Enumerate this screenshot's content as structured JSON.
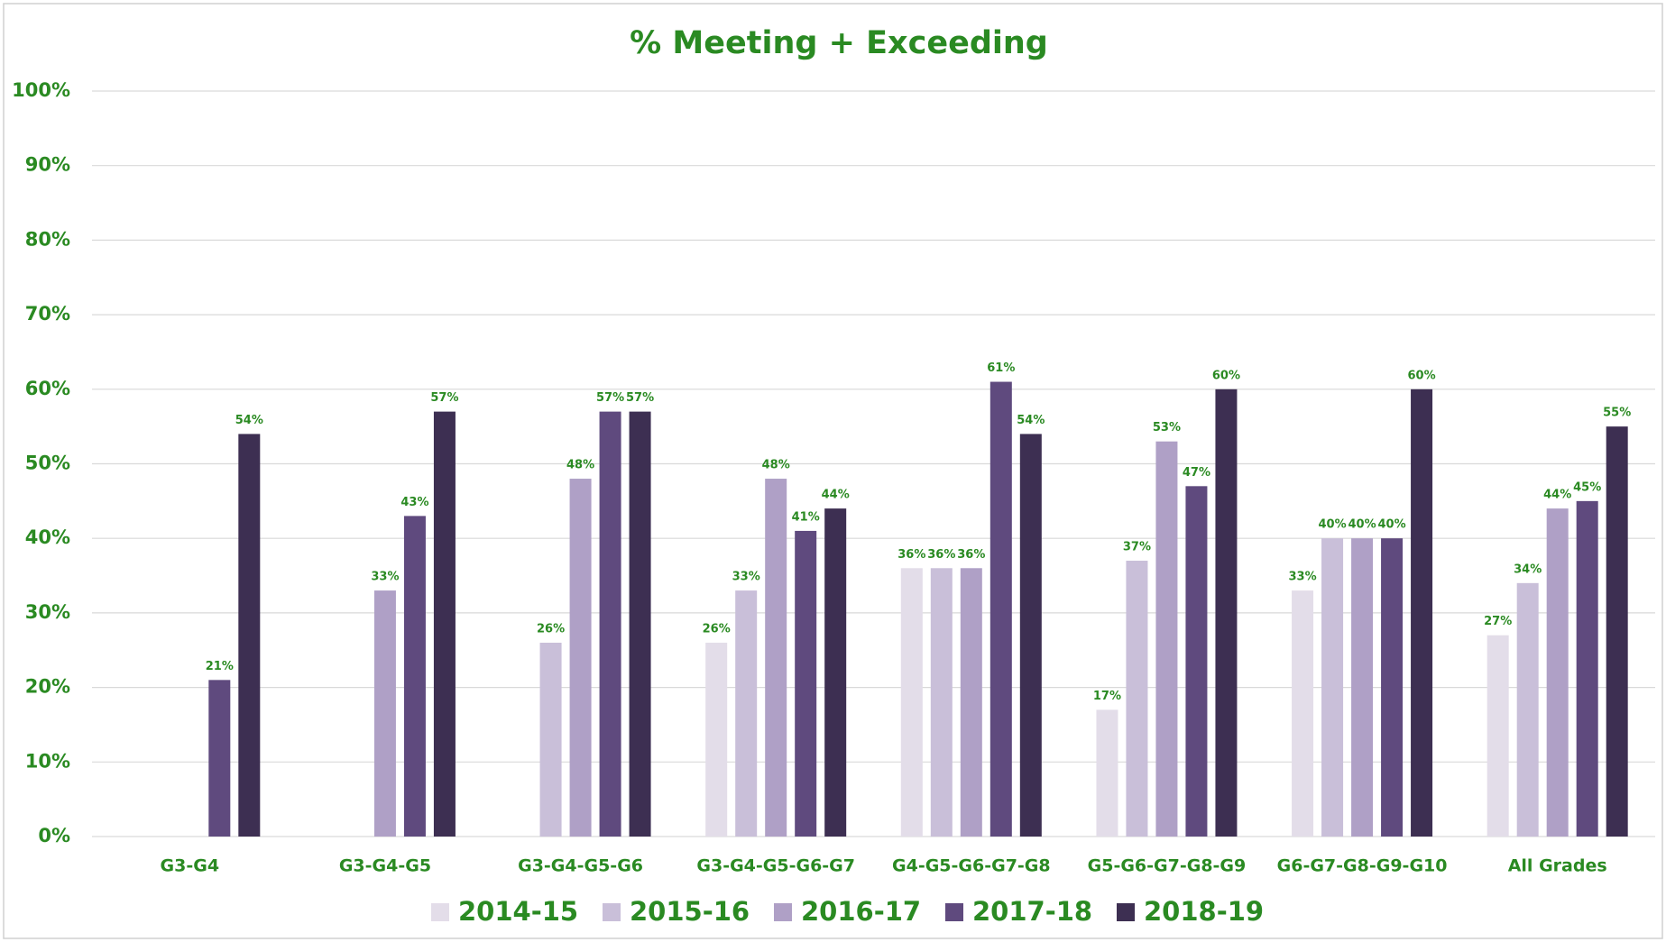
{
  "chart_data": {
    "type": "bar",
    "title": "% Meeting + Exceeding",
    "categories": [
      "G3-G4",
      "G3-G4-G5",
      "G3-G4-G5-G6",
      "G3-G4-G5-G6-G7",
      "G4-G5-G6-G7-G8",
      "G5-G6-G7-G8-G9",
      "G6-G7-G8-G9-G10",
      "All Grades"
    ],
    "series": [
      {
        "name": "2014-15",
        "color": "#e3dde9",
        "values": [
          null,
          null,
          null,
          26,
          36,
          17,
          33,
          27
        ],
        "value_labels": [
          null,
          null,
          null,
          "26%",
          "36%",
          "17%",
          "33%",
          "27%"
        ]
      },
      {
        "name": "2015-16",
        "color": "#c9bfd9",
        "values": [
          null,
          null,
          26,
          33,
          36,
          37,
          40,
          34
        ],
        "value_labels": [
          null,
          null,
          "26%",
          "33%",
          "36%",
          "37%",
          "40%",
          "34%"
        ]
      },
      {
        "name": "2016-17",
        "color": "#afa0c6",
        "values": [
          null,
          33,
          48,
          48,
          36,
          53,
          40,
          44
        ],
        "value_labels": [
          null,
          "33%",
          "48%",
          "48%",
          "36%",
          "53%",
          "40%",
          "44%"
        ]
      },
      {
        "name": "2017-18",
        "color": "#5f4a7e",
        "values": [
          21,
          43,
          57,
          41,
          61,
          47,
          40,
          45
        ],
        "value_labels": [
          "21%",
          "43%",
          "57%",
          "41%",
          "61%",
          "47%",
          "40%",
          "45%"
        ]
      },
      {
        "name": "2018-19",
        "color": "#3d2f52",
        "values": [
          54,
          57,
          57,
          44,
          54,
          60,
          60,
          55
        ],
        "value_labels": [
          "54%",
          "57%",
          "57%",
          "44%",
          "54%",
          "60%",
          "60%",
          "55%"
        ]
      }
    ],
    "ylim": [
      0,
      100
    ],
    "yticks": [
      {
        "value": 0,
        "label": "0%"
      },
      {
        "value": 10,
        "label": "10%"
      },
      {
        "value": 20,
        "label": "20%"
      },
      {
        "value": 30,
        "label": "30%"
      },
      {
        "value": 40,
        "label": "40%"
      },
      {
        "value": 50,
        "label": "50%"
      },
      {
        "value": 60,
        "label": "60%"
      },
      {
        "value": 70,
        "label": "70%"
      },
      {
        "value": 80,
        "label": "80%"
      },
      {
        "value": 90,
        "label": "90%"
      },
      {
        "value": 100,
        "label": "100%"
      }
    ],
    "grid": true,
    "legend": "bottom"
  }
}
